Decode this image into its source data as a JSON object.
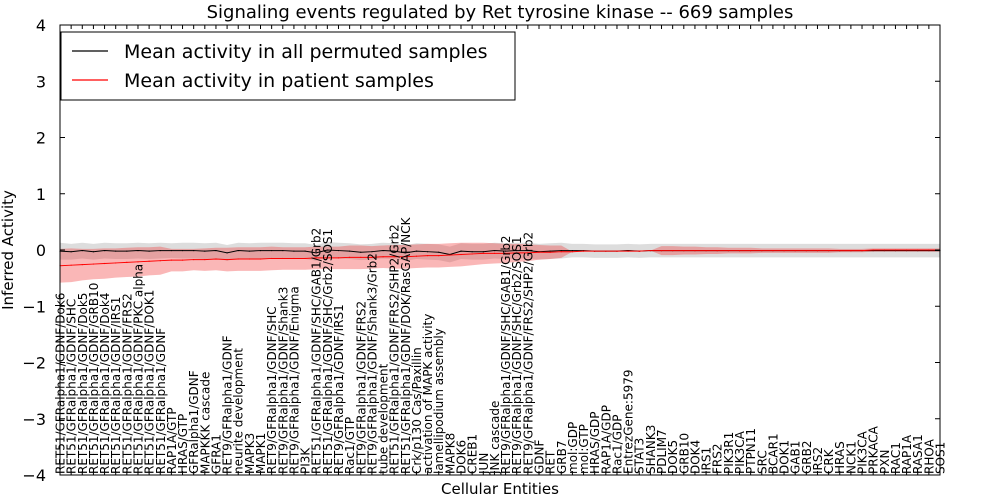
{
  "chart_data": {
    "type": "line",
    "title": "Signaling events regulated by Ret tyrosine kinase -- 669 samples",
    "xlabel": "Cellular Entities",
    "ylabel": "Inferred Activity",
    "ylim": [
      -4,
      4
    ],
    "yticks": [
      -4,
      -3,
      -2,
      -1,
      0,
      1,
      2,
      3,
      4
    ],
    "ytick_labels": [
      "−4",
      "−3",
      "−2",
      "−1",
      "0",
      "1",
      "2",
      "3",
      "4"
    ],
    "grid": false,
    "legend_position": "top-left",
    "categories": [
      "RET51/GFRalpha1/GDNF/Dok6",
      "RET51/GFRalpha1/GDNF/SHC",
      "RET51/GFRalpha1/GDNF/Dok5",
      "RET51/GFRalpha1/GDNF/GRB10",
      "RET51/GFRalpha1/GDNF/Dok4",
      "RET51/GFRalpha1/GDNF/IRS1",
      "RET51/GFRalpha1/GDNF/FRS2",
      "RET51/GFRalpha1/GDNF/PKC alpha",
      "RET51/GFRalpha1/GDNF/DOK1",
      "RET51/GFRalpha1/GDNF",
      "RAP1A/GTP",
      "HRAS/GTP",
      "GFRalpha1/GDNF",
      "MAPKKK cascade",
      "GFRA1",
      "RET9/GFRalpha1/GDNF",
      "neurite development",
      "MAPK3",
      "MAPK1",
      "RET9/GFRalpha1/GDNF/SHC",
      "RET9/GFRalpha1/GDNF/Shank3",
      "RET9/GFRalpha1/GDNF/Enigma",
      "PI3K",
      "RET51/GFRalpha1/GDNF/SHC/GAB1/Grb2",
      "RET51/GFRalpha1/GDNF/SHC/Grb2/SOS1",
      "RET9/GFRalpha1/GDNF/IRS1",
      "Rac1/GTP",
      "RET9/GFRalpha1/GDNF/FRS2",
      "RET9/GFRalpha1/GDNF/Shank3/Grb2",
      "tube development",
      "RET51/GFRalpha1/GDNF/FRS2/SHP2/Grb2",
      "RET51/GFRalpha1/GDNF/DOK/RasGAP/NCK",
      "Crk/p130 Cas/Paxillin",
      "activation of MAPK activity",
      "lamellipodium assembly",
      "MAPK8",
      "DOK6",
      "CREB1",
      "JUN",
      "JNK cascade",
      "RET9/GFRalpha1/GDNF/SHC/GAB1/Grb2",
      "RET9/GFRalpha1/GDNF/SHC/Grb2/SOS1",
      "RET9/GFRalpha1/GDNF/FRS2/SHP2/Grb2",
      "GDNF",
      "RET",
      "GRB7",
      "mol:GDP",
      "mol:GTP",
      "HRAS/GDP",
      "RAP1A/GDP",
      "Rac1/GDP",
      "EntrezGene:5979",
      "STAT3",
      "SHANK3",
      "PDLIM7",
      "DOK5",
      "GRB10",
      "DOK4",
      "IRS1",
      "FRS2",
      "PIK3R1",
      "PIK3CA",
      "PTPN11",
      "SRC",
      "BCAR1",
      "DOK1",
      "GAB1",
      "GRB2",
      "IRS2",
      "CRK",
      "HRAS",
      "NCK1",
      "PIK3CA",
      "PRKACA",
      "PXN",
      "RAC1",
      "RAP1A",
      "RASA1",
      "RHOA",
      "SOS1"
    ],
    "series": [
      {
        "name": "Mean activity in all permuted samples",
        "color": "#000000",
        "values": [
          -0.02,
          -0.03,
          -0.01,
          -0.03,
          -0.01,
          -0.02,
          -0.02,
          -0.01,
          -0.02,
          -0.01,
          -0.01,
          -0.01,
          -0.01,
          -0.02,
          -0.01,
          -0.05,
          -0.01,
          -0.02,
          -0.01,
          -0.01,
          -0.01,
          -0.02,
          -0.02,
          -0.05,
          0.0,
          -0.01,
          -0.02,
          -0.04,
          -0.03,
          -0.01,
          -0.02,
          -0.05,
          -0.02,
          -0.03,
          -0.04,
          -0.08,
          -0.02,
          -0.03,
          -0.03,
          -0.01,
          -0.02,
          -0.01,
          -0.01,
          -0.03,
          -0.02,
          -0.01,
          -0.01,
          -0.01,
          -0.02,
          -0.02,
          -0.02,
          -0.01,
          -0.02,
          -0.01,
          -0.01,
          -0.01,
          -0.01,
          -0.01,
          -0.01,
          -0.01,
          -0.01,
          -0.01,
          -0.01,
          -0.01,
          -0.01,
          -0.01,
          -0.01,
          -0.01,
          -0.01,
          -0.01,
          -0.01,
          -0.01,
          -0.01,
          -0.01,
          -0.01,
          -0.01,
          -0.01,
          -0.01,
          -0.01,
          -0.01
        ],
        "band": [
          0.15,
          0.14,
          0.14,
          0.14,
          0.14,
          0.14,
          0.14,
          0.14,
          0.14,
          0.14,
          0.13,
          0.14,
          0.14,
          0.14,
          0.14,
          0.14,
          0.14,
          0.14,
          0.14,
          0.14,
          0.14,
          0.14,
          0.14,
          0.14,
          0.14,
          0.14,
          0.14,
          0.14,
          0.14,
          0.14,
          0.14,
          0.14,
          0.14,
          0.14,
          0.14,
          0.14,
          0.14,
          0.14,
          0.14,
          0.14,
          0.14,
          0.14,
          0.14,
          0.14,
          0.14,
          0.14,
          0.12,
          0.12,
          0.12,
          0.12,
          0.12,
          0.12,
          0.12,
          0.12,
          0.12,
          0.12,
          0.12,
          0.12,
          0.12,
          0.12,
          0.12,
          0.12,
          0.12,
          0.12,
          0.12,
          0.12,
          0.12,
          0.12,
          0.12,
          0.12,
          0.12,
          0.12,
          0.12,
          0.12,
          0.12,
          0.12,
          0.12,
          0.12,
          0.12,
          0.12
        ]
      },
      {
        "name": "Mean activity in patient samples",
        "color": "#ff0000",
        "values": [
          -0.28,
          -0.27,
          -0.26,
          -0.25,
          -0.24,
          -0.23,
          -0.22,
          -0.21,
          -0.2,
          -0.19,
          -0.18,
          -0.18,
          -0.17,
          -0.17,
          -0.16,
          -0.17,
          -0.16,
          -0.16,
          -0.16,
          -0.15,
          -0.15,
          -0.15,
          -0.15,
          -0.14,
          -0.14,
          -0.14,
          -0.13,
          -0.13,
          -0.13,
          -0.12,
          -0.12,
          -0.12,
          -0.11,
          -0.1,
          -0.1,
          -0.09,
          -0.08,
          -0.07,
          -0.06,
          -0.06,
          -0.06,
          -0.05,
          -0.05,
          -0.04,
          -0.04,
          -0.03,
          -0.03,
          -0.02,
          -0.02,
          -0.02,
          -0.02,
          -0.02,
          -0.02,
          -0.01,
          -0.01,
          -0.01,
          -0.01,
          -0.01,
          -0.01,
          -0.01,
          -0.01,
          -0.01,
          -0.01,
          -0.01,
          -0.01,
          -0.01,
          -0.01,
          -0.01,
          -0.01,
          -0.01,
          -0.01,
          -0.01,
          -0.01,
          0.0,
          0.0,
          0.0,
          0.0,
          0.0,
          0.0,
          0.0
        ],
        "band": [
          0.3,
          0.3,
          0.28,
          0.27,
          0.27,
          0.26,
          0.26,
          0.26,
          0.25,
          0.25,
          0.2,
          0.2,
          0.19,
          0.2,
          0.2,
          0.21,
          0.21,
          0.21,
          0.21,
          0.21,
          0.2,
          0.2,
          0.2,
          0.2,
          0.2,
          0.2,
          0.21,
          0.21,
          0.2,
          0.2,
          0.21,
          0.21,
          0.21,
          0.21,
          0.21,
          0.21,
          0.21,
          0.2,
          0.19,
          0.18,
          0.17,
          0.16,
          0.15,
          0.13,
          0.12,
          0.11,
          0.0,
          0.0,
          0.0,
          0.0,
          0.0,
          0.0,
          0.0,
          0.0,
          0.08,
          0.08,
          0.07,
          0.07,
          0.06,
          0.06,
          0.05,
          0.05,
          0.05,
          0.04,
          0.04,
          0.04,
          0.04,
          0.04,
          0.04,
          0.04,
          0.03,
          0.03,
          0.03,
          0.03,
          0.03,
          0.03,
          0.03,
          0.03,
          0.03,
          0.03
        ]
      }
    ]
  }
}
